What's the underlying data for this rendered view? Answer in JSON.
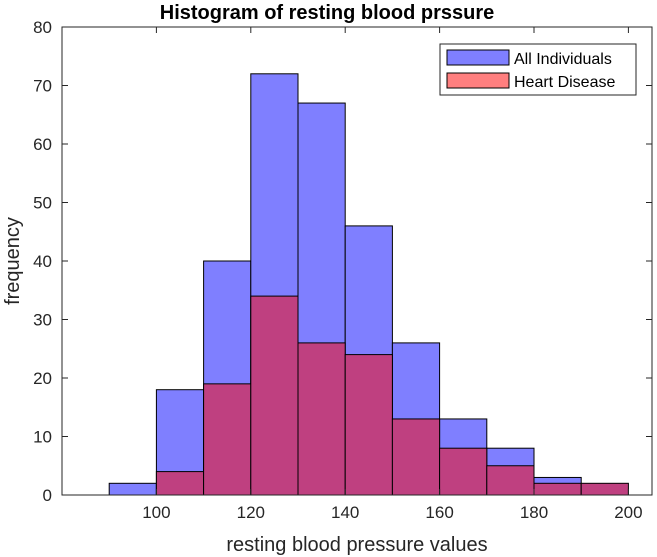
{
  "chart_data": {
    "type": "bar",
    "title": "Histogram of resting blood prssure",
    "xlabel": "resting blood pressure values",
    "ylabel": "frequency",
    "xlim": [
      80,
      205
    ],
    "ylim": [
      0,
      80
    ],
    "xticks": [
      100,
      120,
      140,
      160,
      180,
      200
    ],
    "yticks": [
      0,
      10,
      20,
      30,
      40,
      50,
      60,
      70,
      80
    ],
    "grid": false,
    "legend_position": "top-right",
    "bin_edges": [
      90,
      100,
      110,
      120,
      130,
      140,
      150,
      160,
      170,
      180,
      190,
      200
    ],
    "series": [
      {
        "name": "All Individuals",
        "color": "#7f7fff",
        "values": [
          2,
          18,
          40,
          72,
          67,
          46,
          26,
          13,
          8,
          3,
          0
        ]
      },
      {
        "name": "Heart Disease",
        "color": "#bf4080",
        "legend_color": "#ff7f7f",
        "values": [
          0,
          4,
          19,
          34,
          26,
          24,
          13,
          8,
          5,
          2,
          2
        ]
      }
    ]
  }
}
